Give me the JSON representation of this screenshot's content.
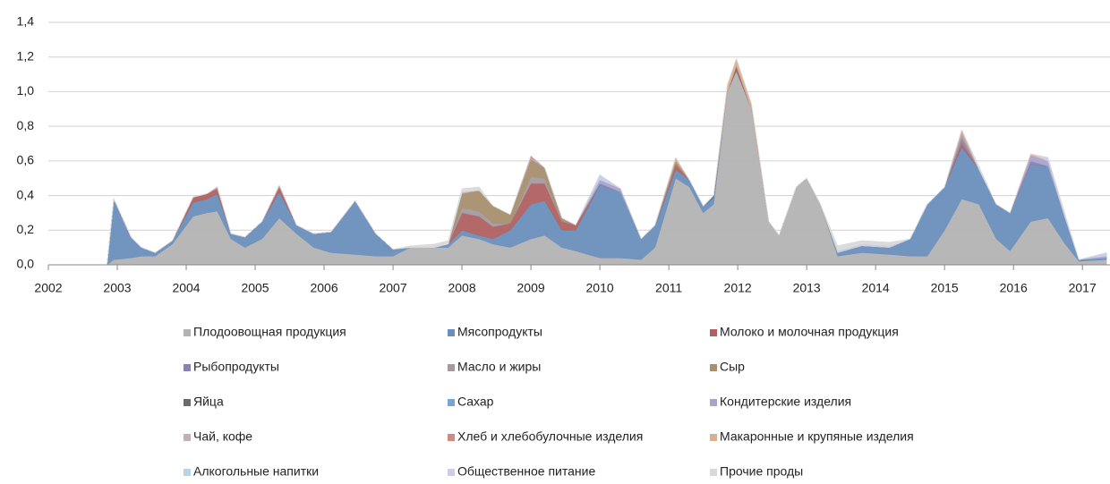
{
  "chart_data": {
    "type": "area",
    "stacked": true,
    "x": [
      2002.85,
      2002.95,
      2003.2,
      2003.35,
      2003.55,
      2003.8,
      2004.1,
      2004.3,
      2004.45,
      2004.65,
      2004.85,
      2005.1,
      2005.35,
      2005.6,
      2005.85,
      2006.1,
      2006.45,
      2006.75,
      2007.0,
      2007.25,
      2007.6,
      2007.8,
      2008.0,
      2008.25,
      2008.45,
      2008.7,
      2009.0,
      2009.2,
      2009.45,
      2009.65,
      2010.0,
      2010.3,
      2010.6,
      2010.8,
      2011.1,
      2011.3,
      2011.5,
      2011.65,
      2011.85,
      2011.98,
      2012.2,
      2012.45,
      2012.6,
      2012.85,
      2013.0,
      2013.2,
      2013.45,
      2013.8,
      2014.2,
      2014.5,
      2014.75,
      2015.0,
      2015.25,
      2015.5,
      2015.75,
      2015.95,
      2016.25,
      2016.5,
      2016.75,
      2016.95,
      2017.35
    ],
    "xlim": [
      2002,
      2017.4
    ],
    "xticks": [
      2002,
      2003,
      2004,
      2005,
      2006,
      2007,
      2008,
      2009,
      2010,
      2011,
      2012,
      2013,
      2014,
      2015,
      2016,
      2017
    ],
    "ylim": [
      0,
      1.4
    ],
    "yticks": [
      {
        "value": 0,
        "label": "0,0"
      },
      {
        "value": 0.2,
        "label": "0,2"
      },
      {
        "value": 0.4,
        "label": "0,4"
      },
      {
        "value": 0.6,
        "label": "0,6"
      },
      {
        "value": 0.8,
        "label": "0,8"
      },
      {
        "value": 1.0,
        "label": "1,0"
      },
      {
        "value": 1.2,
        "label": "1,2"
      },
      {
        "value": 1.4,
        "label": "1,4"
      }
    ],
    "grid": true,
    "legend": "bottom",
    "series": [
      {
        "name": "Плодоовощная продукция",
        "color": "#b3b3b3",
        "values": [
          0,
          0.03,
          0.04,
          0.05,
          0.05,
          0.12,
          0.28,
          0.3,
          0.31,
          0.15,
          0.1,
          0.15,
          0.27,
          0.18,
          0.1,
          0.07,
          0.06,
          0.05,
          0.05,
          0.1,
          0.1,
          0.1,
          0.17,
          0.15,
          0.12,
          0.1,
          0.15,
          0.17,
          0.1,
          0.08,
          0.04,
          0.04,
          0.03,
          0.1,
          0.5,
          0.45,
          0.3,
          0.35,
          1.0,
          1.12,
          0.9,
          0.25,
          0.17,
          0.45,
          0.5,
          0.35,
          0.05,
          0.07,
          0.06,
          0.05,
          0.05,
          0.2,
          0.38,
          0.35,
          0.15,
          0.08,
          0.25,
          0.27,
          0.12,
          0.02,
          0.03
        ]
      },
      {
        "name": "Мясопродукты",
        "color": "#6a8fbd",
        "values": [
          0,
          0.35,
          0.12,
          0.05,
          0.02,
          0.02,
          0.08,
          0.08,
          0.1,
          0.03,
          0.06,
          0.1,
          0.15,
          0.05,
          0.08,
          0.12,
          0.31,
          0.13,
          0.04,
          0,
          0,
          0.02,
          0.03,
          0.02,
          0.03,
          0.1,
          0.2,
          0.2,
          0.1,
          0.12,
          0.42,
          0.38,
          0.12,
          0.12,
          0.05,
          0.04,
          0.03,
          0.04,
          0,
          0,
          0,
          0,
          0,
          0,
          0,
          0,
          0.02,
          0.04,
          0.04,
          0.1,
          0.3,
          0.25,
          0.3,
          0.2,
          0.2,
          0.22,
          0.33,
          0.3,
          0.15,
          0.01,
          0.01
        ]
      },
      {
        "name": "Молоко и молочная продукция",
        "color": "#b06060",
        "values": [
          0,
          0,
          0,
          0,
          0,
          0,
          0.03,
          0.03,
          0.03,
          0,
          0,
          0,
          0.03,
          0,
          0,
          0,
          0,
          0,
          0,
          0,
          0,
          0,
          0.1,
          0.11,
          0.07,
          0.04,
          0.12,
          0.1,
          0.05,
          0.03,
          0,
          0,
          0,
          0,
          0.03,
          0,
          0,
          0,
          0,
          0.02,
          0,
          0,
          0,
          0,
          0,
          0,
          0,
          0,
          0,
          0,
          0,
          0,
          0.02,
          0,
          0,
          0,
          0,
          0,
          0,
          0,
          0
        ]
      },
      {
        "name": "Рыбопродукты",
        "color": "#8a80b5",
        "values": [
          0,
          0,
          0,
          0,
          0,
          0,
          0,
          0,
          0,
          0,
          0,
          0,
          0,
          0,
          0,
          0,
          0,
          0,
          0,
          0,
          0,
          0,
          0,
          0,
          0,
          0,
          0,
          0,
          0,
          0,
          0.01,
          0,
          0,
          0,
          0,
          0,
          0,
          0,
          0,
          0,
          0,
          0,
          0,
          0,
          0,
          0,
          0,
          0,
          0,
          0,
          0,
          0,
          0.02,
          0,
          0,
          0,
          0.02,
          0,
          0,
          0,
          0
        ]
      },
      {
        "name": "Масло и жиры",
        "color": "#a49b9e",
        "values": [
          0,
          0,
          0,
          0,
          0,
          0,
          0,
          0,
          0,
          0,
          0,
          0,
          0,
          0,
          0,
          0,
          0,
          0,
          0,
          0,
          0,
          0,
          0.03,
          0.03,
          0.02,
          0,
          0.04,
          0.03,
          0,
          0,
          0,
          0,
          0,
          0,
          0,
          0,
          0,
          0,
          0,
          0,
          0,
          0,
          0,
          0,
          0,
          0,
          0,
          0,
          0,
          0,
          0,
          0,
          0,
          0,
          0,
          0,
          0,
          0,
          0,
          0,
          0
        ]
      },
      {
        "name": "Сыр",
        "color": "#a88f6e",
        "values": [
          0,
          0,
          0,
          0,
          0,
          0,
          0,
          0,
          0,
          0,
          0,
          0,
          0,
          0,
          0,
          0,
          0,
          0,
          0,
          0,
          0,
          0,
          0.08,
          0.12,
          0.1,
          0.05,
          0.1,
          0.06,
          0.02,
          0,
          0,
          0,
          0,
          0,
          0.02,
          0,
          0,
          0,
          0,
          0,
          0,
          0,
          0,
          0,
          0,
          0,
          0,
          0,
          0,
          0,
          0,
          0,
          0.02,
          0,
          0,
          0,
          0,
          0,
          0,
          0,
          0
        ]
      },
      {
        "name": "Яйца",
        "color": "#6b6b6b",
        "values": [
          0,
          0,
          0,
          0,
          0,
          0,
          0,
          0,
          0,
          0,
          0,
          0,
          0,
          0,
          0,
          0,
          0,
          0,
          0,
          0,
          0,
          0,
          0,
          0,
          0,
          0,
          0,
          0,
          0,
          0,
          0,
          0,
          0,
          0,
          0,
          0,
          0,
          0.01,
          0,
          0.01,
          0,
          0,
          0,
          0,
          0,
          0,
          0,
          0,
          0,
          0,
          0,
          0,
          0,
          0,
          0,
          0,
          0,
          0,
          0,
          0,
          0
        ]
      },
      {
        "name": "Сахар",
        "color": "#78a5d1",
        "values": [
          0,
          0,
          0,
          0,
          0,
          0,
          0,
          0,
          0,
          0,
          0,
          0,
          0,
          0,
          0,
          0,
          0,
          0,
          0,
          0,
          0,
          0,
          0,
          0,
          0,
          0,
          0,
          0,
          0,
          0,
          0,
          0,
          0,
          0.01,
          0,
          0,
          0.01,
          0,
          0,
          0,
          0,
          0,
          0,
          0,
          0,
          0,
          0,
          0,
          0,
          0,
          0,
          0,
          0,
          0,
          0,
          0,
          0,
          0,
          0,
          0,
          0
        ]
      },
      {
        "name": "Кондитерские изделия",
        "color": "#a9a3d0",
        "values": [
          0,
          0,
          0,
          0,
          0,
          0,
          0,
          0,
          0,
          0,
          0,
          0,
          0,
          0,
          0,
          0,
          0,
          0,
          0,
          0,
          0,
          0,
          0,
          0,
          0,
          0,
          0,
          0,
          0,
          0,
          0.02,
          0.02,
          0,
          0,
          0,
          0,
          0,
          0,
          0,
          0,
          0,
          0,
          0,
          0,
          0,
          0,
          0,
          0,
          0,
          0,
          0,
          0,
          0.02,
          0,
          0,
          0,
          0.03,
          0.03,
          0,
          0,
          0.01
        ]
      },
      {
        "name": "Чай, кофе",
        "color": "#c4afb4",
        "values": [
          0,
          0,
          0,
          0,
          0,
          0,
          0,
          0,
          0,
          0,
          0,
          0,
          0,
          0,
          0,
          0,
          0,
          0,
          0,
          0,
          0,
          0,
          0.01,
          0,
          0,
          0,
          0.01,
          0,
          0,
          0,
          0,
          0,
          0,
          0,
          0,
          0,
          0,
          0,
          0,
          0,
          0,
          0,
          0,
          0,
          0,
          0,
          0,
          0,
          0,
          0,
          0,
          0,
          0,
          0,
          0,
          0,
          0,
          0,
          0,
          0,
          0
        ]
      },
      {
        "name": "Хлеб и хлебобулочные изделия",
        "color": "#cf8a83",
        "values": [
          0,
          0,
          0,
          0,
          0,
          0,
          0,
          0,
          0.01,
          0,
          0,
          0,
          0.01,
          0,
          0,
          0,
          0,
          0,
          0,
          0,
          0,
          0,
          0,
          0,
          0,
          0,
          0.01,
          0,
          0,
          0,
          0,
          0,
          0,
          0,
          0,
          0,
          0,
          0,
          0,
          0,
          0,
          0,
          0,
          0,
          0,
          0,
          0,
          0,
          0,
          0,
          0,
          0,
          0,
          0,
          0,
          0,
          0,
          0,
          0,
          0,
          0
        ]
      },
      {
        "name": "Макаронные и крупяные изделия",
        "color": "#d9b08e",
        "values": [
          0,
          0,
          0,
          0,
          0,
          0,
          0,
          0,
          0,
          0,
          0,
          0,
          0,
          0,
          0,
          0,
          0,
          0,
          0,
          0,
          0,
          0,
          0,
          0,
          0,
          0,
          0,
          0,
          0,
          0,
          0,
          0,
          0,
          0,
          0.02,
          0,
          0,
          0,
          0.04,
          0.04,
          0.03,
          0,
          0,
          0,
          0,
          0,
          0,
          0,
          0,
          0,
          0,
          0,
          0.02,
          0,
          0,
          0,
          0.01,
          0,
          0,
          0,
          0
        ]
      },
      {
        "name": "Алкогольные напитки",
        "color": "#b8d3ea",
        "values": [
          0,
          0,
          0,
          0,
          0,
          0,
          0,
          0,
          0,
          0,
          0,
          0,
          0,
          0,
          0,
          0,
          0,
          0,
          0,
          0,
          0,
          0,
          0,
          0,
          0,
          0,
          0,
          0,
          0,
          0,
          0.02,
          0,
          0,
          0,
          0,
          0,
          0,
          0,
          0,
          0,
          0,
          0,
          0,
          0,
          0,
          0,
          0.01,
          0,
          0,
          0,
          0,
          0,
          0,
          0,
          0,
          0,
          0,
          0,
          0,
          0,
          0.01
        ]
      },
      {
        "name": "Общественное питание",
        "color": "#cfcde6",
        "values": [
          0,
          0,
          0,
          0,
          0,
          0,
          0,
          0,
          0,
          0,
          0,
          0,
          0,
          0,
          0,
          0,
          0,
          0,
          0,
          0,
          0,
          0,
          0,
          0,
          0,
          0,
          0,
          0,
          0,
          0,
          0.01,
          0,
          0,
          0,
          0,
          0,
          0,
          0,
          0,
          0,
          0,
          0,
          0,
          0,
          0,
          0,
          0,
          0.01,
          0.01,
          0,
          0,
          0,
          0,
          0,
          0,
          0,
          0,
          0.02,
          0.02,
          0,
          0.01
        ]
      },
      {
        "name": "Прочие проды",
        "color": "#d9d9d9",
        "values": [
          0,
          0,
          0,
          0,
          0,
          0,
          0,
          0,
          0,
          0,
          0,
          0,
          0,
          0,
          0,
          0,
          0,
          0,
          0,
          0.01,
          0.02,
          0.02,
          0.02,
          0.02,
          0,
          0,
          0,
          0,
          0,
          0,
          0,
          0,
          0,
          0,
          0,
          0,
          0,
          0,
          0,
          0,
          0,
          0,
          0,
          0,
          0,
          0,
          0.03,
          0.02,
          0.02,
          0,
          0,
          0,
          0,
          0.02,
          0,
          0,
          0,
          0,
          0,
          0,
          0
        ]
      }
    ]
  }
}
